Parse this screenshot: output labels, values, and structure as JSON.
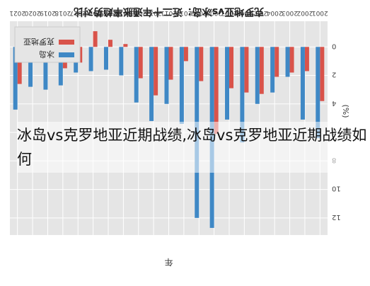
{
  "overlay_caption": "冰岛vs克罗地亚近期战绩,冰岛vs克罗地亚近期战绩如何",
  "colors": {
    "croatia": "#d9534a",
    "iceland": "#3f88c5",
    "grid": "#ffffff",
    "background": "#e5e5e5"
  },
  "chart_data": {
    "type": "bar",
    "orientation": "rotated-180",
    "title": "克罗地亚vs冰岛：近二十年通胀率趋势对比",
    "xlabel": "年",
    "ylabel": "(%)",
    "ylim": [
      -1.8,
      13.2
    ],
    "yticks": [
      0,
      2,
      4,
      6,
      8,
      10,
      12
    ],
    "grid": true,
    "legend_position": "top-right",
    "categories": [
      "2021",
      "2020",
      "2019",
      "2018",
      "2017",
      "2016",
      "2015",
      "2014",
      "2013",
      "2012",
      "2011",
      "2010",
      "2009",
      "2008",
      "2007",
      "2006",
      "2005",
      "2004",
      "2003",
      "2002",
      "2001"
    ],
    "series": [
      {
        "name": "克罗地亚",
        "color": "#d9534a",
        "values": [
          2.6,
          0.1,
          0.8,
          1.5,
          1.1,
          -1.1,
          -0.5,
          -0.2,
          2.2,
          3.4,
          2.3,
          1.0,
          2.4,
          6.1,
          2.9,
          3.2,
          3.3,
          2.1,
          1.8,
          1.7,
          3.8
        ]
      },
      {
        "name": "冰岛",
        "color": "#3f88c5",
        "values": [
          4.4,
          2.8,
          3.0,
          2.7,
          1.8,
          1.7,
          1.6,
          2.0,
          3.9,
          5.2,
          4.0,
          5.4,
          12.0,
          12.7,
          5.1,
          6.7,
          4.0,
          3.2,
          2.1,
          5.1,
          6.4
        ]
      }
    ]
  }
}
